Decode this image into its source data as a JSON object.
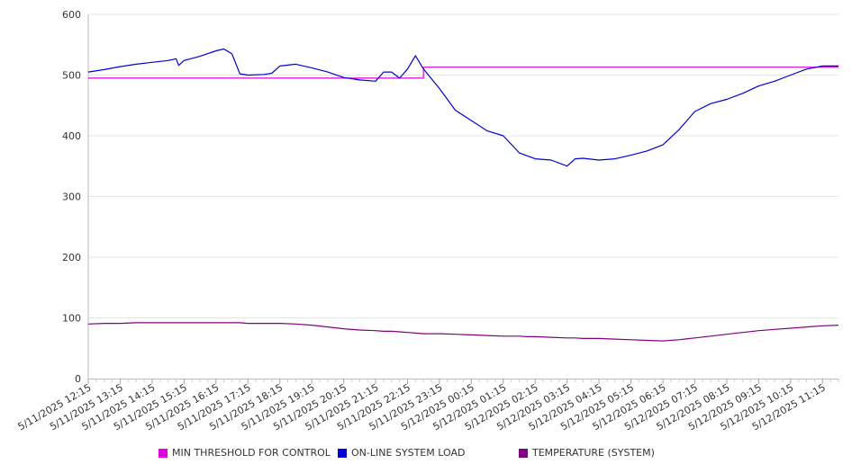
{
  "chart_data": {
    "type": "line",
    "title": "",
    "xlabel": "",
    "ylabel": "",
    "ylim": [
      0,
      600
    ],
    "yticks": [
      0,
      100,
      200,
      300,
      400,
      500,
      600
    ],
    "grid": true,
    "legend_position": "bottom",
    "x_tick_labels": [
      "5/11/2025 12:15",
      "5/11/2025 13:15",
      "5/11/2025 14:15",
      "5/11/2025 15:15",
      "5/11/2025 16:15",
      "5/11/2025 17:15",
      "5/11/2025 18:15",
      "5/11/2025 19:15",
      "5/11/2025 20:15",
      "5/11/2025 21:15",
      "5/11/2025 22:15",
      "5/11/2025 23:15",
      "5/12/2025 00:15",
      "5/12/2025 01:15",
      "5/12/2025 02:15",
      "5/12/2025 03:15",
      "5/12/2025 04:15",
      "5/12/2025 05:15",
      "5/12/2025 06:15",
      "5/12/2025 07:15",
      "5/12/2025 08:15",
      "5/12/2025 09:15",
      "5/12/2025 10:15",
      "5/12/2025 11:15"
    ],
    "x": [
      "5/11/2025 12:15",
      "5/11/2025 12:45",
      "5/11/2025 13:15",
      "5/11/2025 13:45",
      "5/11/2025 14:15",
      "5/11/2025 14:45",
      "5/11/2025 15:00",
      "5/11/2025 15:05",
      "5/11/2025 15:15",
      "5/11/2025 15:45",
      "5/11/2025 16:15",
      "5/11/2025 16:30",
      "5/11/2025 16:45",
      "5/11/2025 17:00",
      "5/11/2025 17:15",
      "5/11/2025 17:45",
      "5/11/2025 18:00",
      "5/11/2025 18:15",
      "5/11/2025 18:45",
      "5/11/2025 19:15",
      "5/11/2025 19:45",
      "5/11/2025 20:15",
      "5/11/2025 20:45",
      "5/11/2025 21:15",
      "5/11/2025 21:30",
      "5/11/2025 21:45",
      "5/11/2025 22:00",
      "5/11/2025 22:15",
      "5/11/2025 22:30",
      "5/11/2025 22:45",
      "5/11/2025 23:15",
      "5/11/2025 23:45",
      "5/12/2025 00:15",
      "5/12/2025 00:45",
      "5/12/2025 01:15",
      "5/12/2025 01:45",
      "5/12/2025 02:00",
      "5/12/2025 02:15",
      "5/12/2025 02:45",
      "5/12/2025 03:15",
      "5/12/2025 03:30",
      "5/12/2025 03:45",
      "5/12/2025 04:15",
      "5/12/2025 04:45",
      "5/12/2025 05:15",
      "5/12/2025 05:45",
      "5/12/2025 06:15",
      "5/12/2025 06:45",
      "5/12/2025 07:15",
      "5/12/2025 07:45",
      "5/12/2025 08:15",
      "5/12/2025 08:45",
      "5/12/2025 09:15",
      "5/12/2025 09:45",
      "5/12/2025 10:15",
      "5/12/2025 10:45",
      "5/12/2025 11:15",
      "5/12/2025 11:45"
    ],
    "series": [
      {
        "name": "MIN THRESHOLD FOR CONTROL",
        "color": "#e000e0",
        "values": [
          495,
          495,
          495,
          495,
          495,
          495,
          495,
          495,
          495,
          495,
          495,
          495,
          495,
          495,
          495,
          495,
          495,
          495,
          495,
          495,
          495,
          495,
          495,
          495,
          495,
          495,
          495,
          495,
          495,
          513,
          513,
          513,
          513,
          513,
          513,
          513,
          513,
          513,
          513,
          513,
          513,
          513,
          513,
          513,
          513,
          513,
          513,
          513,
          513,
          513,
          513,
          513,
          513,
          513,
          513,
          513,
          513,
          513
        ]
      },
      {
        "name": "ON-LINE SYSTEM LOAD",
        "color": "#0000dd",
        "values": [
          505,
          509,
          514,
          518,
          521,
          524,
          527,
          516,
          524,
          531,
          540,
          543,
          535,
          502,
          500,
          501,
          503,
          515,
          518,
          512,
          505,
          496,
          492,
          490,
          505,
          505,
          495,
          510,
          532,
          510,
          478,
          442,
          425,
          408,
          400,
          372,
          367,
          362,
          360,
          350,
          362,
          363,
          360,
          362,
          368,
          375,
          385,
          410,
          440,
          453,
          460,
          470,
          482,
          490,
          500,
          510,
          515,
          515
        ]
      },
      {
        "name": "TEMPERATURE (SYSTEM)",
        "color": "#800080",
        "values": [
          90,
          91,
          91,
          92,
          92,
          92,
          92,
          92,
          92,
          92,
          92,
          92,
          92,
          92,
          91,
          91,
          91,
          91,
          90,
          88,
          85,
          82,
          80,
          79,
          78,
          78,
          77,
          76,
          75,
          74,
          74,
          73,
          72,
          71,
          70,
          70,
          69,
          69,
          68,
          67,
          67,
          66,
          66,
          65,
          64,
          63,
          62,
          64,
          67,
          70,
          73,
          76,
          79,
          81,
          83,
          85,
          87,
          88
        ]
      }
    ]
  }
}
